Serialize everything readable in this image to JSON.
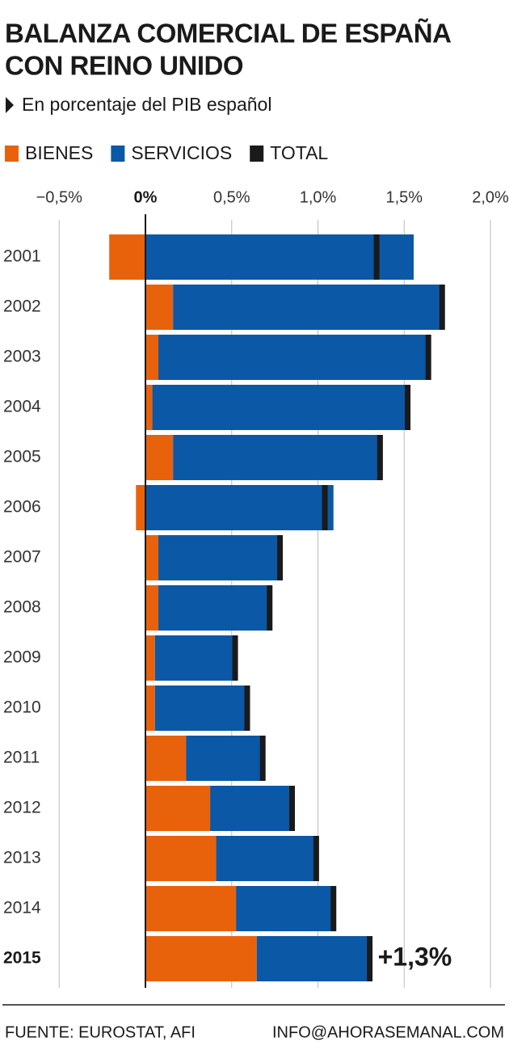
{
  "chart_data": {
    "type": "stacked-barh",
    "title": [
      "BALANZA COMERCIAL DE ESPAÑA",
      "CON REINO UNIDO"
    ],
    "subtitle": "En porcentaje del PIB español",
    "categories": [
      "2001",
      "2002",
      "2003",
      "2004",
      "2005",
      "2006",
      "2007",
      "2008",
      "2009",
      "2010",
      "2011",
      "2012",
      "2013",
      "2014",
      "2015"
    ],
    "series": [
      {
        "name": "BIENES",
        "color": "#e8620c",
        "values": [
          -0.21,
          0.16,
          0.075,
          0.04,
          0.16,
          -0.055,
          0.075,
          0.075,
          0.055,
          0.055,
          0.235,
          0.375,
          0.41,
          0.525,
          0.645
        ]
      },
      {
        "name": "SERVICIOS",
        "color": "#0b58a6",
        "values": [
          1.555,
          1.55,
          1.55,
          1.47,
          1.19,
          1.09,
          0.69,
          0.63,
          0.455,
          0.52,
          0.43,
          0.465,
          0.565,
          0.55,
          0.64
        ]
      },
      {
        "name": "TOTAL",
        "color": "#1a1a1a",
        "style": "marker",
        "values": [
          1.34,
          1.72,
          1.64,
          1.52,
          1.36,
          1.04,
          0.78,
          0.72,
          0.52,
          0.59,
          0.68,
          0.85,
          0.99,
          1.09,
          1.3
        ]
      }
    ],
    "annotation": "+1,3%",
    "xlim": [
      -0.8,
      2.1
    ],
    "xticks": [
      {
        "value": -0.5,
        "label": "−0,5%"
      },
      {
        "value": 0,
        "label": "0%"
      },
      {
        "value": 0.5,
        "label": "0,5%"
      },
      {
        "value": 1,
        "label": "1,0%"
      },
      {
        "value": 1.5,
        "label": "1,5%"
      },
      {
        "value": 2,
        "label": "2,0%"
      }
    ],
    "grid": true,
    "source": "FUENTE: EUROSTAT, AFI",
    "credit": "INFO@AHORASEMANAL.COM"
  }
}
